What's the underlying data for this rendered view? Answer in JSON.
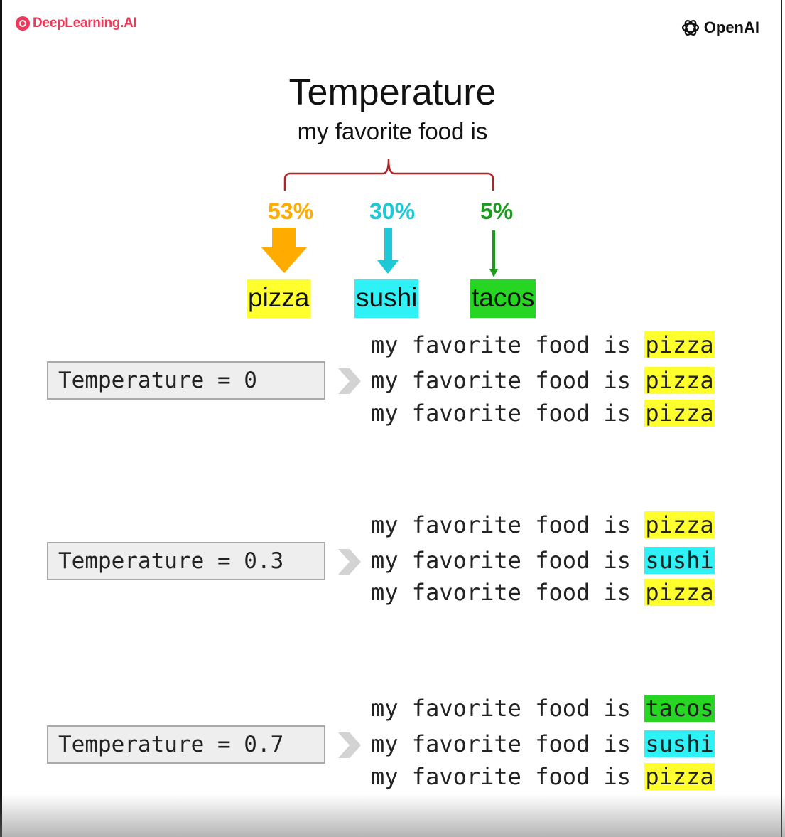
{
  "logos": {
    "left": "DeepLearning.AI",
    "right": "OpenAI"
  },
  "title": "Temperature",
  "subtitle": "my favorite food is",
  "colors": {
    "pizza": "#ffff2e",
    "sushi": "#2ef2f5",
    "tacos": "#27d622",
    "pizza_pct": "#ffab00",
    "sushi_pct": "#1fc8d6",
    "tacos_pct": "#1e9a1e",
    "brace": "#b02428"
  },
  "options": [
    {
      "word": "pizza",
      "percent": "53%"
    },
    {
      "word": "sushi",
      "percent": "30%"
    },
    {
      "word": "tacos",
      "percent": "5%"
    }
  ],
  "prefix": "my favorite food is",
  "settings": [
    {
      "label": "Temperature = 0",
      "outputs": [
        "pizza",
        "pizza",
        "pizza"
      ]
    },
    {
      "label": "Temperature = 0.3",
      "outputs": [
        "pizza",
        "sushi",
        "pizza"
      ]
    },
    {
      "label": "Temperature = 0.7",
      "outputs": [
        "tacos",
        "sushi",
        "pizza"
      ]
    }
  ]
}
